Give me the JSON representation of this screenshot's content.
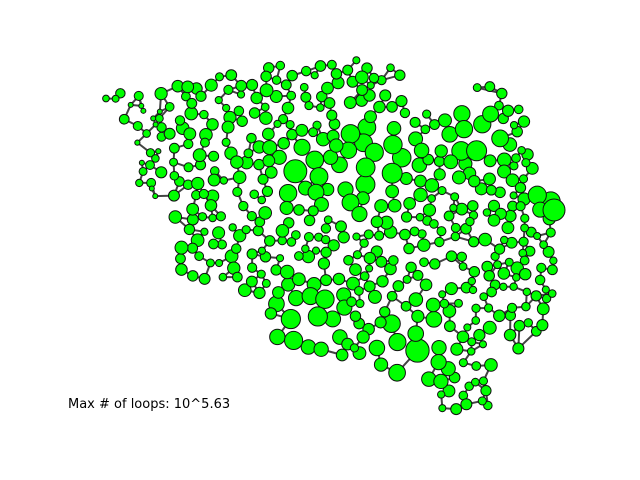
{
  "caption": "Max # of loops: 10^5.63",
  "colors": {
    "node_fill": "#00ff00",
    "node_stroke": "#111111",
    "edge": "#444444",
    "background": "#ffffff"
  },
  "graph": {
    "type": "network",
    "node_shape": "circle",
    "node_size_encoding": "varies per node",
    "axes": "hidden"
  }
}
